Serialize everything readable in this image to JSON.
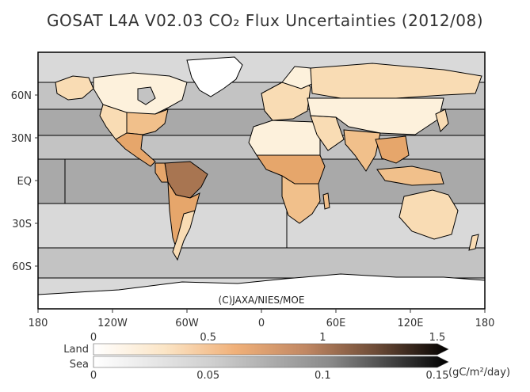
{
  "title": "GOSAT L4A V02.03 CO₂ Flux Uncertainties (2012/08)",
  "copyright": "(C)JAXA/NIES/MOE",
  "map": {
    "lat_ticks": [
      "60N",
      "30N",
      "EQ",
      "30S",
      "60S"
    ],
    "lon_ticks": [
      "180",
      "120W",
      "60W",
      "0",
      "60E",
      "120E",
      "180"
    ]
  },
  "colorbars": {
    "land": {
      "name": "Land",
      "ticks": [
        "0",
        "0.5",
        "1",
        "1.5"
      ],
      "colors": [
        "#ffffff",
        "#fbe5c6",
        "#f0b079",
        "#c08763",
        "#6b4a36",
        "#000000"
      ]
    },
    "sea": {
      "name": "Sea",
      "ticks": [
        "0",
        "0.05",
        "0.1",
        "0.15"
      ],
      "colors": [
        "#ffffff",
        "#cfcfcf",
        "#8a8a8a",
        "#000000"
      ],
      "unit": "(gC/m²/day)"
    }
  },
  "colors": {
    "sea_light": "#d9d9d9",
    "sea_mid": "#c3c3c3",
    "sea_dark": "#a9a9a9",
    "land_pale": "#fdf1dc",
    "land_light": "#f9dcb4",
    "land_mid": "#f1c08b",
    "land_orange": "#e6a66b",
    "land_brown": "#a87551",
    "antarctica": "#ffffff"
  }
}
